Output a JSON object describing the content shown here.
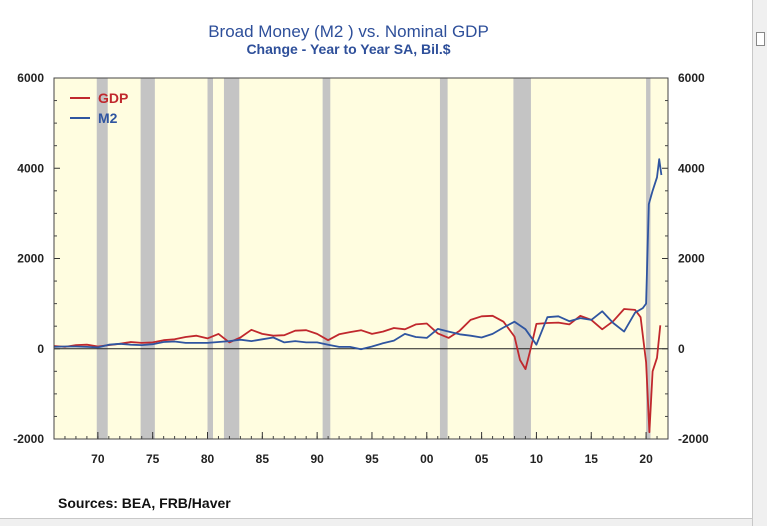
{
  "title": "Broad Money (M2 ) vs. Nominal GDP",
  "subtitle": "Change - Year to Year    SA, Bil.$",
  "source": "Sources:  BEA, FRB/Haver",
  "colors": {
    "gdp": "#c0282d",
    "m2": "#2f55a0",
    "plot_bg": "#fffde0",
    "recession": "#c4c4c4",
    "text": "#2e4f9a"
  },
  "chart_data": {
    "type": "line",
    "title": "Broad Money (M2 ) vs. Nominal GDP",
    "subtitle": "Change - Year to Year    SA, Bil.$",
    "xlim": [
      1966,
      2022
    ],
    "ylim": [
      -2000,
      6000
    ],
    "x_tick_values": [
      1970,
      1975,
      1980,
      1985,
      1990,
      1995,
      2000,
      2005,
      2010,
      2015,
      2020
    ],
    "x_tick_labels": [
      "70",
      "75",
      "80",
      "85",
      "90",
      "95",
      "00",
      "05",
      "10",
      "15",
      "20"
    ],
    "y_ticks": [
      -2000,
      0,
      2000,
      4000,
      6000
    ],
    "y_tick_labels": [
      "-2000",
      "0",
      "2000",
      "4000",
      "6000"
    ],
    "grid": false,
    "legend_position": "top-left",
    "recessions": [
      [
        1969.9,
        1970.9
      ],
      [
        1973.9,
        1975.2
      ],
      [
        1980.0,
        1980.5
      ],
      [
        1981.5,
        1982.9
      ],
      [
        1990.5,
        1991.2
      ],
      [
        2001.2,
        2001.9
      ],
      [
        2007.9,
        2009.5
      ],
      [
        2020.0,
        2020.4
      ]
    ],
    "series": [
      {
        "name": "GDP",
        "color": "#c0282d",
        "points": [
          [
            1966,
            60
          ],
          [
            1967,
            40
          ],
          [
            1968,
            80
          ],
          [
            1969,
            90
          ],
          [
            1970,
            50
          ],
          [
            1971,
            80
          ],
          [
            1972,
            110
          ],
          [
            1973,
            150
          ],
          [
            1974,
            130
          ],
          [
            1975,
            140
          ],
          [
            1976,
            190
          ],
          [
            1977,
            210
          ],
          [
            1978,
            260
          ],
          [
            1979,
            290
          ],
          [
            1980,
            230
          ],
          [
            1981,
            330
          ],
          [
            1982,
            140
          ],
          [
            1983,
            250
          ],
          [
            1984,
            420
          ],
          [
            1985,
            330
          ],
          [
            1986,
            290
          ],
          [
            1987,
            300
          ],
          [
            1988,
            400
          ],
          [
            1989,
            410
          ],
          [
            1990,
            330
          ],
          [
            1991,
            190
          ],
          [
            1992,
            320
          ],
          [
            1993,
            370
          ],
          [
            1994,
            410
          ],
          [
            1995,
            330
          ],
          [
            1996,
            380
          ],
          [
            1997,
            460
          ],
          [
            1998,
            430
          ],
          [
            1999,
            540
          ],
          [
            2000,
            560
          ],
          [
            2001,
            340
          ],
          [
            2002,
            240
          ],
          [
            2003,
            400
          ],
          [
            2004,
            640
          ],
          [
            2005,
            720
          ],
          [
            2006,
            730
          ],
          [
            2007,
            600
          ],
          [
            2008,
            270
          ],
          [
            2008.5,
            -250
          ],
          [
            2009,
            -450
          ],
          [
            2009.5,
            20
          ],
          [
            2010,
            550
          ],
          [
            2011,
            570
          ],
          [
            2012,
            580
          ],
          [
            2013,
            540
          ],
          [
            2014,
            730
          ],
          [
            2015,
            640
          ],
          [
            2016,
            430
          ],
          [
            2017,
            610
          ],
          [
            2018,
            880
          ],
          [
            2019,
            860
          ],
          [
            2019.5,
            700
          ],
          [
            2020,
            -300
          ],
          [
            2020.3,
            -1850
          ],
          [
            2020.6,
            -500
          ],
          [
            2021,
            -200
          ],
          [
            2021.3,
            520
          ]
        ]
      },
      {
        "name": "M2",
        "color": "#2f55a0",
        "points": [
          [
            1966,
            40
          ],
          [
            1967,
            50
          ],
          [
            1968,
            50
          ],
          [
            1969,
            40
          ],
          [
            1970,
            30
          ],
          [
            1971,
            90
          ],
          [
            1972,
            110
          ],
          [
            1973,
            90
          ],
          [
            1974,
            80
          ],
          [
            1975,
            100
          ],
          [
            1976,
            150
          ],
          [
            1977,
            160
          ],
          [
            1978,
            130
          ],
          [
            1979,
            130
          ],
          [
            1980,
            130
          ],
          [
            1981,
            150
          ],
          [
            1982,
            170
          ],
          [
            1983,
            200
          ],
          [
            1984,
            170
          ],
          [
            1985,
            210
          ],
          [
            1986,
            250
          ],
          [
            1987,
            140
          ],
          [
            1988,
            170
          ],
          [
            1989,
            140
          ],
          [
            1990,
            140
          ],
          [
            1991,
            90
          ],
          [
            1992,
            40
          ],
          [
            1993,
            40
          ],
          [
            1994,
            -10
          ],
          [
            1995,
            50
          ],
          [
            1996,
            120
          ],
          [
            1997,
            180
          ],
          [
            1998,
            330
          ],
          [
            1999,
            260
          ],
          [
            2000,
            240
          ],
          [
            2001,
            440
          ],
          [
            2002,
            380
          ],
          [
            2003,
            320
          ],
          [
            2004,
            290
          ],
          [
            2005,
            250
          ],
          [
            2006,
            330
          ],
          [
            2007,
            470
          ],
          [
            2008,
            600
          ],
          [
            2009,
            430
          ],
          [
            2010,
            90
          ],
          [
            2011,
            700
          ],
          [
            2012,
            720
          ],
          [
            2013,
            610
          ],
          [
            2014,
            680
          ],
          [
            2015,
            640
          ],
          [
            2016,
            830
          ],
          [
            2017,
            570
          ],
          [
            2018,
            380
          ],
          [
            2019,
            800
          ],
          [
            2019.7,
            900
          ],
          [
            2020,
            1000
          ],
          [
            2020.25,
            3200
          ],
          [
            2020.6,
            3500
          ],
          [
            2021,
            3800
          ],
          [
            2021.2,
            4200
          ],
          [
            2021.4,
            3850
          ]
        ]
      }
    ]
  }
}
